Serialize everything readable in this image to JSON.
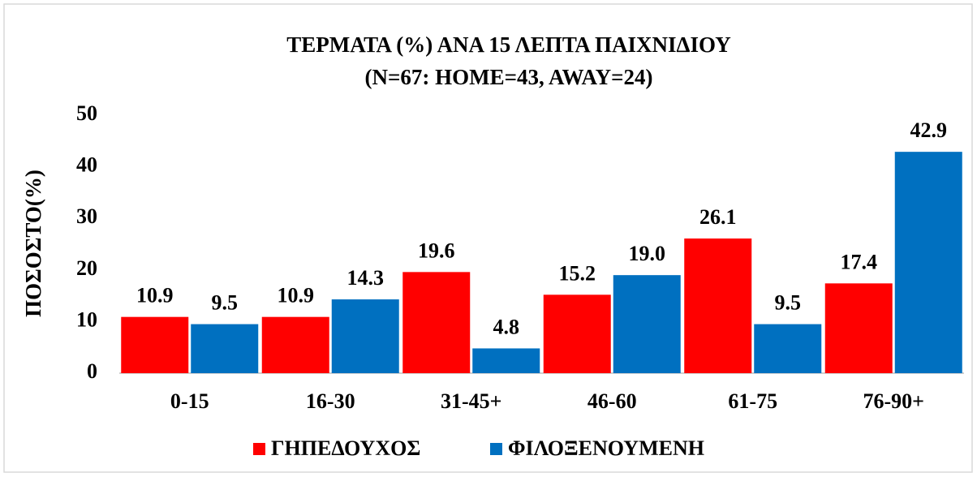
{
  "chart_data": {
    "type": "bar",
    "title": [
      "ΤΕΡΜΑΤΑ (%) ΑΝΑ 15 ΛΕΠΤΑ ΠΑΙΧΝΙΔΙΟΥ",
      "(N=67: HOME=43, AWAY=24)"
    ],
    "y_label": "ΠΟΣΟΣΤΟ(%)",
    "categories": [
      "0-15",
      "16-30",
      "31-45+",
      "46-60",
      "61-75",
      "76-90+"
    ],
    "series": [
      {
        "name": "ΓΗΠΕΔΟΥΧΟΣ",
        "color": "#ff0000",
        "values": [
          10.9,
          10.9,
          19.6,
          15.2,
          26.1,
          17.4
        ],
        "value_labels": [
          "10.9",
          "10.9",
          "19.6",
          "15.2",
          "26.1",
          "17.4"
        ]
      },
      {
        "name": "ΦΙΛΟΞΕΝΟΥΜΕΝΗ",
        "color": "#0070c0",
        "values": [
          9.5,
          14.3,
          4.8,
          19.0,
          9.5,
          42.9
        ],
        "value_labels": [
          "9.5",
          "14.3",
          "4.8",
          "19.0",
          "9.5",
          "42.9"
        ]
      }
    ],
    "ylim": [
      0,
      50
    ],
    "yticks": [
      0,
      10,
      20,
      30,
      40,
      50
    ],
    "grid": false,
    "legend": "bottom"
  }
}
